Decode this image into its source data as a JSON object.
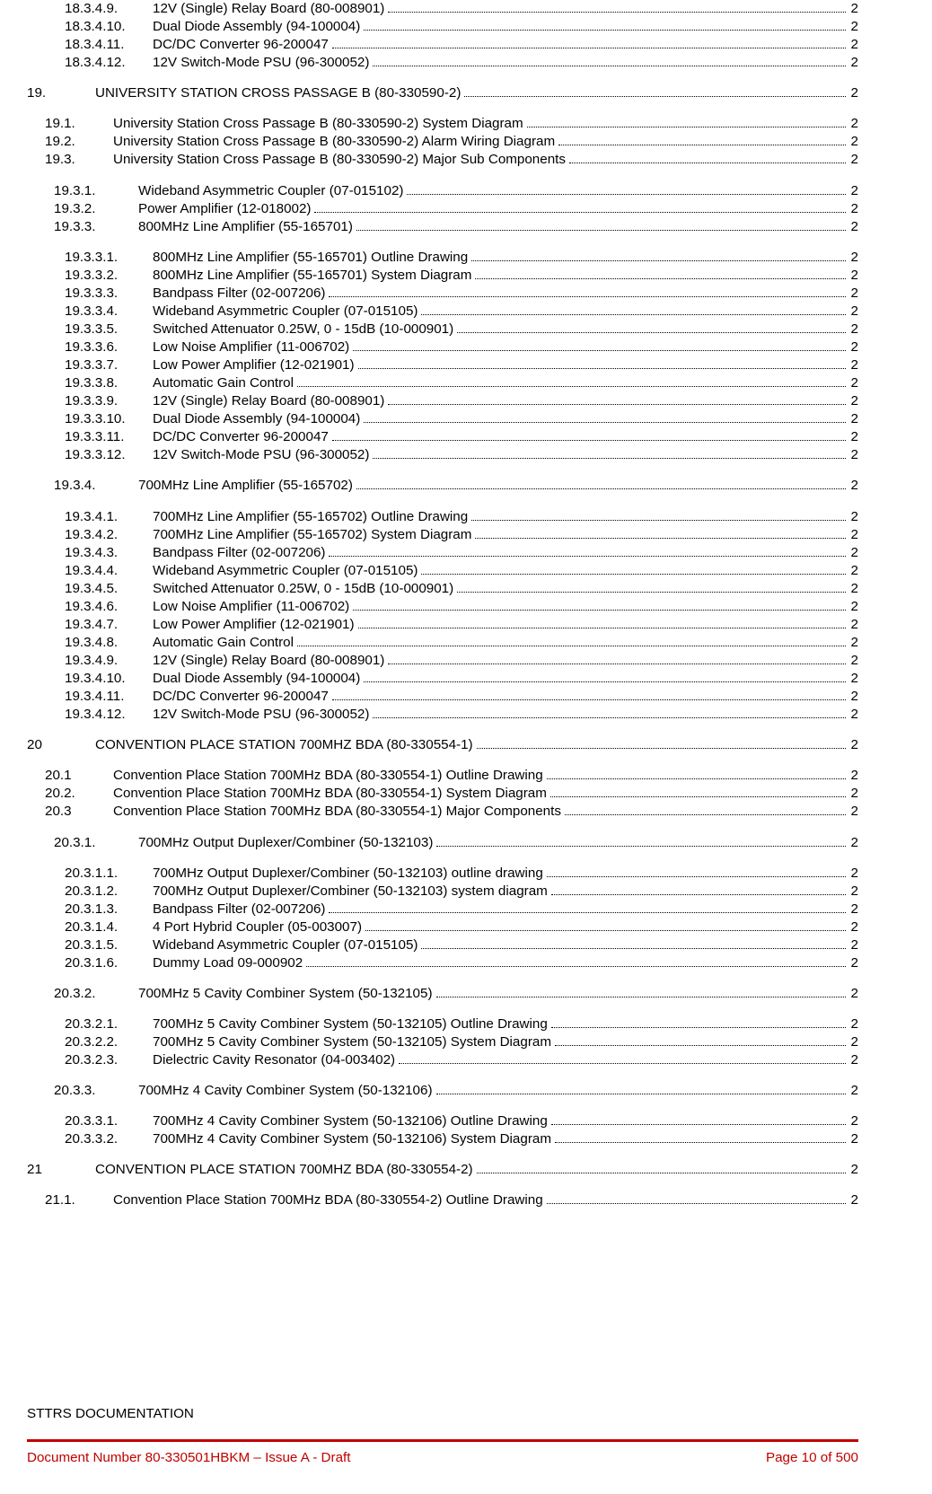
{
  "toc": [
    {
      "lvl": 3,
      "num": "18.3.4.9.",
      "t": "12V (Single) Relay Board (80-008901)",
      "pg": "2",
      "first": false
    },
    {
      "lvl": 3,
      "num": "18.3.4.10.",
      "t": "Dual Diode Assembly (94-100004)",
      "pg": "2"
    },
    {
      "lvl": 3,
      "num": "18.3.4.11.",
      "t": "DC/DC Converter 96-200047",
      "pg": "2"
    },
    {
      "lvl": 3,
      "num": "18.3.4.12.",
      "t": "12V Switch-Mode PSU (96-300052)",
      "pg": "2"
    },
    {
      "lvl": 0,
      "num": "19.",
      "t": "UNIVERSITY STATION CROSS PASSAGE B (80-330590-2)",
      "pg": "2"
    },
    {
      "lvl": 1,
      "num": "19.1.",
      "t": "University Station Cross Passage B (80-330590-2) System Diagram",
      "pg": "2",
      "first": true
    },
    {
      "lvl": 1,
      "num": "19.2.",
      "t": "University Station Cross Passage B (80-330590-2) Alarm Wiring Diagram",
      "pg": "2"
    },
    {
      "lvl": 1,
      "num": "19.3.",
      "t": "University Station Cross Passage B (80-330590-2) Major Sub Components",
      "pg": "2"
    },
    {
      "lvl": 2,
      "num": "19.3.1.",
      "t": "Wideband Asymmetric Coupler (07-015102)",
      "pg": "2",
      "first": true
    },
    {
      "lvl": 2,
      "num": "19.3.2.",
      "t": "Power Amplifier (12-018002)",
      "pg": "2"
    },
    {
      "lvl": 2,
      "num": "19.3.3.",
      "t": "800MHz Line Amplifier (55-165701)",
      "pg": "2"
    },
    {
      "lvl": 3,
      "num": "19.3.3.1.",
      "t": "800MHz Line Amplifier (55-165701) Outline Drawing",
      "pg": "2",
      "first": true
    },
    {
      "lvl": 3,
      "num": "19.3.3.2.",
      "t": "800MHz Line Amplifier (55-165701) System Diagram",
      "pg": "2"
    },
    {
      "lvl": 3,
      "num": "19.3.3.3.",
      "t": "Bandpass Filter (02-007206)",
      "pg": "2"
    },
    {
      "lvl": 3,
      "num": "19.3.3.4.",
      "t": "Wideband Asymmetric Coupler (07-015105)",
      "pg": "2"
    },
    {
      "lvl": 3,
      "num": "19.3.3.5.",
      "t": "Switched Attenuator 0.25W, 0 - 15dB (10-000901)",
      "pg": "2"
    },
    {
      "lvl": 3,
      "num": "19.3.3.6.",
      "t": "Low Noise Amplifier (11-006702)",
      "pg": "2"
    },
    {
      "lvl": 3,
      "num": "19.3.3.7.",
      "t": "Low Power Amplifier (12-021901)",
      "pg": "2"
    },
    {
      "lvl": 3,
      "num": "19.3.3.8.",
      "t": "Automatic Gain Control",
      "pg": "2"
    },
    {
      "lvl": 3,
      "num": "19.3.3.9.",
      "t": "12V (Single) Relay Board (80-008901)",
      "pg": "2"
    },
    {
      "lvl": 3,
      "num": "19.3.3.10.",
      "t": "Dual Diode Assembly (94-100004)",
      "pg": "2"
    },
    {
      "lvl": 3,
      "num": "19.3.3.11.",
      "t": "DC/DC Converter 96-200047",
      "pg": "2"
    },
    {
      "lvl": 3,
      "num": "19.3.3.12.",
      "t": "12V Switch-Mode PSU (96-300052)",
      "pg": "2"
    },
    {
      "lvl": 2,
      "num": "19.3.4.",
      "t": "700MHz Line Amplifier (55-165702)",
      "pg": "2",
      "first": true
    },
    {
      "lvl": 3,
      "num": "19.3.4.1.",
      "t": "700MHz Line Amplifier (55-165702) Outline Drawing",
      "pg": "2",
      "first": true
    },
    {
      "lvl": 3,
      "num": "19.3.4.2.",
      "t": "700MHz Line Amplifier (55-165702) System Diagram",
      "pg": "2"
    },
    {
      "lvl": 3,
      "num": "19.3.4.3.",
      "t": "Bandpass Filter (02-007206)",
      "pg": "2"
    },
    {
      "lvl": 3,
      "num": "19.3.4.4.",
      "t": "Wideband Asymmetric Coupler (07-015105)",
      "pg": "2"
    },
    {
      "lvl": 3,
      "num": "19.3.4.5.",
      "t": "Switched Attenuator 0.25W, 0 - 15dB (10-000901)",
      "pg": "2"
    },
    {
      "lvl": 3,
      "num": "19.3.4.6.",
      "t": "Low Noise Amplifier (11-006702)",
      "pg": "2"
    },
    {
      "lvl": 3,
      "num": "19.3.4.7.",
      "t": "Low Power Amplifier (12-021901)",
      "pg": "2"
    },
    {
      "lvl": 3,
      "num": "19.3.4.8.",
      "t": "Automatic Gain Control",
      "pg": "2"
    },
    {
      "lvl": 3,
      "num": "19.3.4.9.",
      "t": "12V (Single) Relay Board (80-008901)",
      "pg": "2"
    },
    {
      "lvl": 3,
      "num": "19.3.4.10.",
      "t": "Dual Diode Assembly (94-100004)",
      "pg": "2"
    },
    {
      "lvl": 3,
      "num": "19.3.4.11.",
      "t": "DC/DC Converter 96-200047",
      "pg": "2"
    },
    {
      "lvl": 3,
      "num": "19.3.4.12.",
      "t": "12V Switch-Mode PSU (96-300052)",
      "pg": "2"
    },
    {
      "lvl": 0,
      "num": "20",
      "t": "CONVENTION PLACE STATION 700MHZ BDA (80-330554-1)",
      "pg": "2"
    },
    {
      "lvl": 1,
      "num": "20.1",
      "t": "Convention Place Station 700MHz BDA (80-330554-1) Outline Drawing",
      "pg": "2",
      "first": true
    },
    {
      "lvl": 1,
      "num": "20.2.",
      "t": "Convention Place Station 700MHz BDA (80-330554-1) System Diagram",
      "pg": "2"
    },
    {
      "lvl": 1,
      "num": "20.3",
      "t": "Convention Place Station 700MHz BDA (80-330554-1) Major Components",
      "pg": "2"
    },
    {
      "lvl": 2,
      "num": "20.3.1.",
      "t": "700MHz Output Duplexer/Combiner (50-132103)",
      "pg": "2",
      "first": true
    },
    {
      "lvl": 3,
      "num": "20.3.1.1.",
      "t": "700MHz Output Duplexer/Combiner (50-132103) outline drawing",
      "pg": "2",
      "first": true
    },
    {
      "lvl": 3,
      "num": "20.3.1.2.",
      "t": "700MHz Output Duplexer/Combiner (50-132103) system diagram",
      "pg": "2"
    },
    {
      "lvl": 3,
      "num": "20.3.1.3.",
      "t": "Bandpass Filter (02-007206)",
      "pg": "2"
    },
    {
      "lvl": 3,
      "num": "20.3.1.4.",
      "t": "4 Port Hybrid Coupler (05-003007)",
      "pg": "2"
    },
    {
      "lvl": 3,
      "num": "20.3.1.5.",
      "t": "Wideband Asymmetric Coupler (07-015105)",
      "pg": "2"
    },
    {
      "lvl": 3,
      "num": "20.3.1.6.",
      "t": "Dummy Load 09-000902",
      "pg": "2"
    },
    {
      "lvl": 2,
      "num": "20.3.2.",
      "t": "700MHz 5 Cavity Combiner System (50-132105)",
      "pg": "2",
      "first": true
    },
    {
      "lvl": 3,
      "num": "20.3.2.1.",
      "t": "700MHz 5 Cavity Combiner System (50-132105) Outline Drawing",
      "pg": "2",
      "first": true
    },
    {
      "lvl": 3,
      "num": "20.3.2.2.",
      "t": "700MHz 5 Cavity Combiner System (50-132105) System Diagram",
      "pg": "2"
    },
    {
      "lvl": 3,
      "num": "20.3.2.3.",
      "t": "Dielectric Cavity Resonator (04-003402)",
      "pg": "2"
    },
    {
      "lvl": 2,
      "num": "20.3.3.",
      "t": "700MHz 4 Cavity Combiner System (50-132106)",
      "pg": "2",
      "first": true
    },
    {
      "lvl": 3,
      "num": "20.3.3.1.",
      "t": "700MHz 4 Cavity Combiner System (50-132106) Outline Drawing",
      "pg": "2",
      "first": true
    },
    {
      "lvl": 3,
      "num": "20.3.3.2.",
      "t": "700MHz 4 Cavity Combiner System (50-132106) System Diagram",
      "pg": "2"
    },
    {
      "lvl": 0,
      "num": "21",
      "t": "CONVENTION PLACE STATION 700MHZ BDA (80-330554-2)",
      "pg": "2"
    },
    {
      "lvl": 1,
      "num": "21.1.",
      "t": "Convention Place Station 700MHz BDA (80-330554-2) Outline Drawing",
      "pg": "2",
      "first": true
    }
  ],
  "footer": {
    "title": "STTRS DOCUMENTATION",
    "left": "Document Number 80-330501HBKM – Issue A - Draft",
    "right": "Page 10 of 500"
  }
}
